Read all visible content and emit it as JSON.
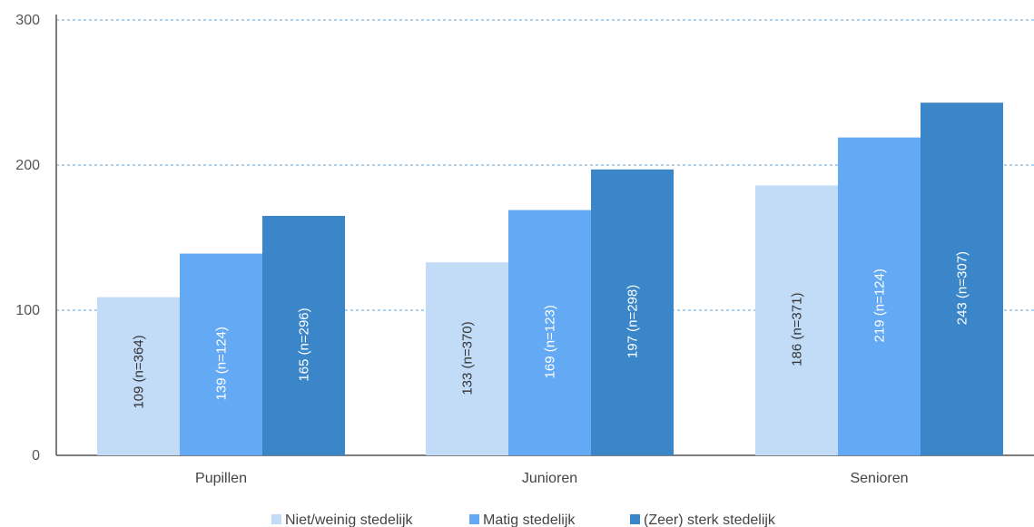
{
  "chart_data": {
    "type": "bar",
    "title": "",
    "xlabel": "",
    "ylabel": "",
    "ylim": [
      0,
      300
    ],
    "yticks": [
      0,
      100,
      200,
      300
    ],
    "grid": "horizontal-dashed",
    "legend_position": "bottom",
    "categories": [
      "Pupillen",
      "Junioren",
      "Senioren"
    ],
    "series": [
      {
        "name": "Niet/weinig stedelijk",
        "color": "#c2dcf8",
        "label_color": "#333333",
        "values": [
          109,
          133,
          186
        ],
        "labels": [
          "109 (n=364)",
          "133 (n=370)",
          "186 (n=371)"
        ]
      },
      {
        "name": "Matig stedelijk",
        "color": "#64a9f3",
        "label_color": "#ffffff",
        "values": [
          139,
          169,
          219
        ],
        "labels": [
          "139 (n=124)",
          "169 (n=123)",
          "219 (n=124)"
        ]
      },
      {
        "name": "(Zeer) sterk stedelijk",
        "color": "#3b86c9",
        "label_color": "#ffffff",
        "values": [
          165,
          197,
          243
        ],
        "labels": [
          "165 (n=296)",
          "197 (n=298)",
          "243 (n=307)"
        ]
      }
    ]
  }
}
